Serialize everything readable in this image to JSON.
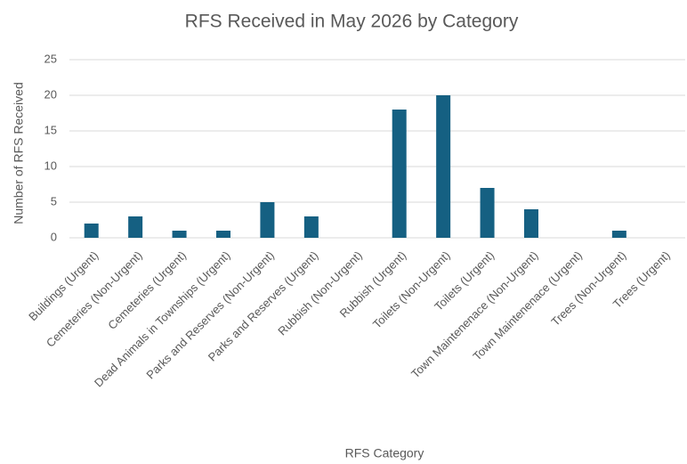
{
  "chart_data": {
    "type": "bar",
    "title": "RFS Received in May 2026 by Category",
    "x_label": "RFS Category",
    "y_label": "Number of RFS Received",
    "categories": [
      "Buildings (Urgent)",
      "Cemeteries (Non-Urgent)",
      "Cemeteries (Urgent)",
      "Dead Animals in Townships (Urgent)",
      "Parks and Reserves (Non-Urgent)",
      "Parks and Reserves (Urgent)",
      "Rubbish (Non-Urgent)",
      "Rubbish (Urgent)",
      "Toilets (Non-Urgent)",
      "Toilets (Urgent)",
      "Town Maintenenace (Non-Urgent)",
      "Town Maintenenace (Urgent)",
      "Trees (Non-Urgent)",
      "Trees (Urgent)"
    ],
    "values": [
      2,
      3,
      1,
      1,
      5,
      3,
      0,
      18,
      20,
      7,
      4,
      0,
      1,
      0
    ],
    "color": "#156082",
    "ylim": [
      0,
      25
    ],
    "yticks": [
      0,
      5,
      10,
      15,
      20,
      25
    ],
    "grid": true
  }
}
